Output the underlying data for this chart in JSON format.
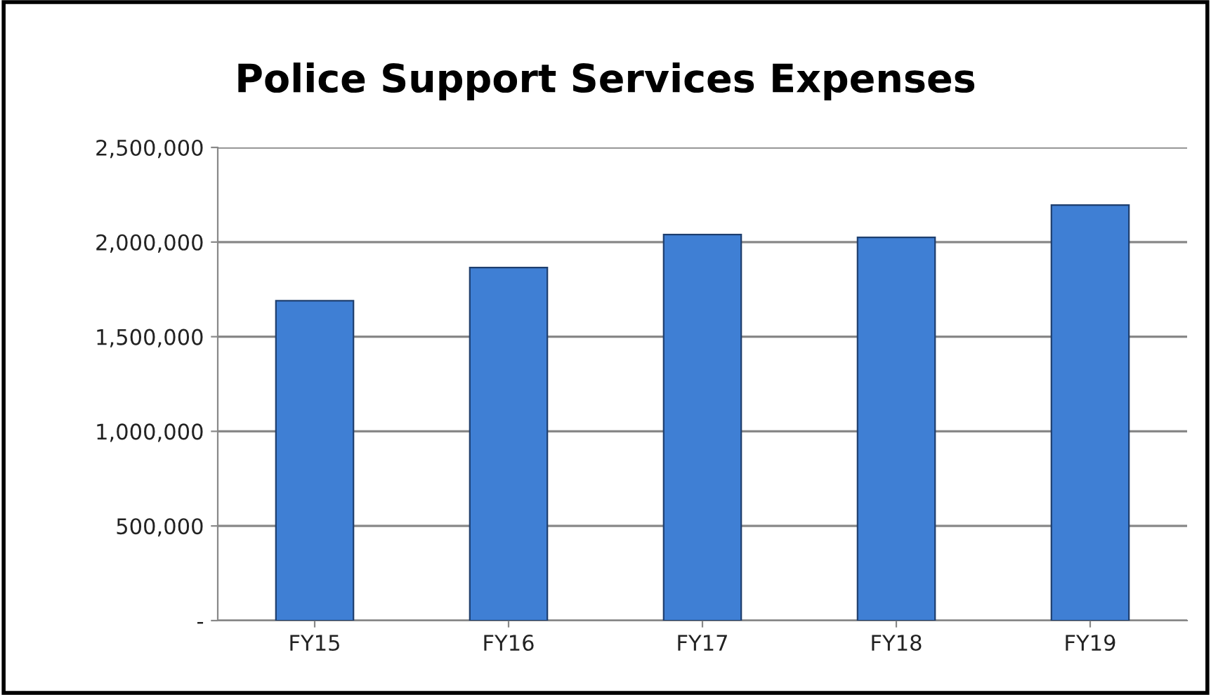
{
  "chart_data": {
    "type": "bar",
    "title": "Police Support Services Expenses",
    "categories": [
      "FY15",
      "FY16",
      "FY17",
      "FY18",
      "FY19"
    ],
    "values": [
      1690000,
      1865000,
      2040000,
      2025000,
      2195000
    ],
    "color": "#3f7fd4",
    "ylim": [
      0,
      2500000
    ],
    "yticks": [
      {
        "value": 0,
        "label": "-"
      },
      {
        "value": 500000,
        "label": "500,000"
      },
      {
        "value": 1000000,
        "label": "1,000,000"
      },
      {
        "value": 1500000,
        "label": "1,500,000"
      },
      {
        "value": 2000000,
        "label": "2,000,000"
      },
      {
        "value": 2500000,
        "label": "2,500,000"
      }
    ],
    "grid": "y"
  }
}
